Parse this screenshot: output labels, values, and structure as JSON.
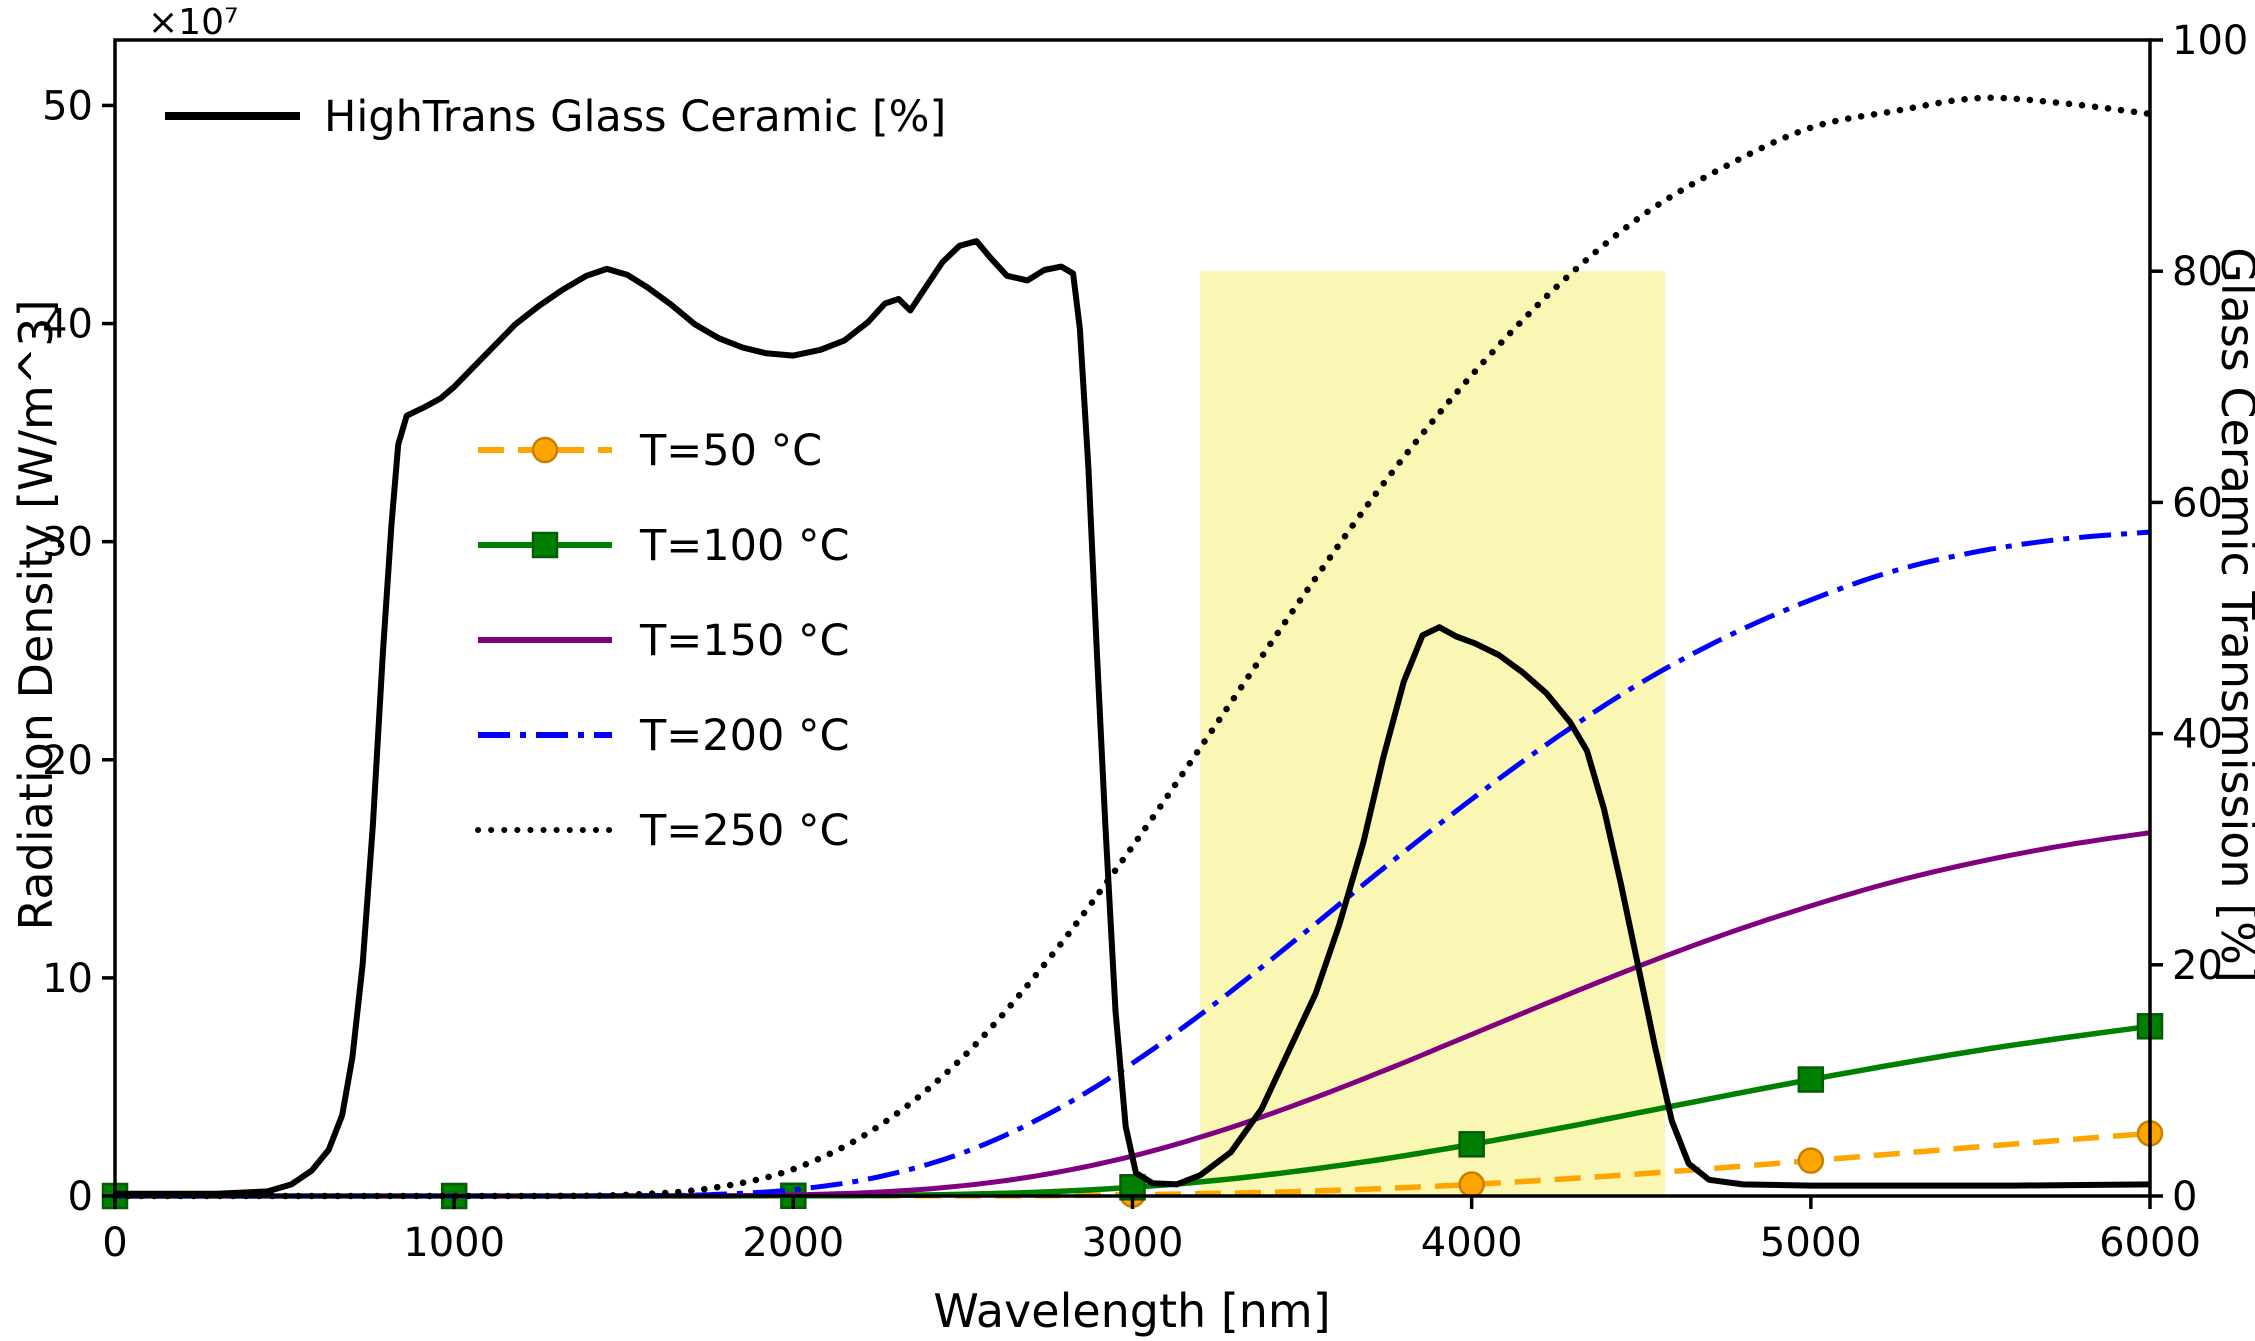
{
  "chart_data": {
    "type": "line",
    "title": "",
    "xlabel": "Wavelength [nm]",
    "ylabel_left": "Radiation Density [W/m^3]",
    "ylabel_right": "Glass Ceramic Transmission [%]",
    "offset_text": "×10⁷",
    "xlim": [
      0,
      6000
    ],
    "ylim_left": [
      0,
      53
    ],
    "ylim_right": [
      0,
      100
    ],
    "xticks": [
      0,
      1000,
      2000,
      3000,
      4000,
      5000,
      6000
    ],
    "yticks_left": [
      0,
      10,
      20,
      30,
      40,
      50
    ],
    "yticks_right": [
      0,
      20,
      40,
      60,
      80,
      100
    ],
    "grid": false,
    "legend_top_position": "upper-left",
    "legend_temps_position": "center-left",
    "highlight_region": {
      "x_start": 3200,
      "x_end": 4570,
      "y_start_pct": 0,
      "y_end_pct": 80,
      "color": "#f6ee6a",
      "opacity": 0.5
    },
    "series": [
      {
        "name": "T=50 °C",
        "legend": "temps",
        "axis": "left",
        "color": "#FFA500",
        "marker_edge": "#c87f00",
        "linestyle": "dashed",
        "linewidth": 5.5,
        "marker": "circle",
        "smooth": true,
        "points": [
          [
            0,
            0
          ],
          [
            1000,
            0
          ],
          [
            1500,
            0
          ],
          [
            2000,
            0.01
          ],
          [
            2250,
            0.01
          ],
          [
            2500,
            0.01
          ],
          [
            2750,
            0.02
          ],
          [
            3000,
            0.06
          ],
          [
            3250,
            0.12
          ],
          [
            3500,
            0.21
          ],
          [
            3750,
            0.35
          ],
          [
            4000,
            0.53
          ],
          [
            4250,
            0.76
          ],
          [
            4500,
            1.02
          ],
          [
            4750,
            1.31
          ],
          [
            5000,
            1.62
          ],
          [
            5250,
            1.94
          ],
          [
            5500,
            2.26
          ],
          [
            5750,
            2.57
          ],
          [
            6000,
            2.87
          ]
        ]
      },
      {
        "name": "T=100 °C",
        "legend": "temps",
        "axis": "left",
        "color": "#008000",
        "marker_edge": "#045c04",
        "linestyle": "solid",
        "linewidth": 5.5,
        "marker": "square",
        "smooth": true,
        "points": [
          [
            0,
            0
          ],
          [
            1000,
            0
          ],
          [
            1500,
            0
          ],
          [
            1750,
            0
          ],
          [
            2000,
            0.01
          ],
          [
            2250,
            0.02
          ],
          [
            2500,
            0.08
          ],
          [
            2750,
            0.19
          ],
          [
            3000,
            0.4
          ],
          [
            3250,
            0.72
          ],
          [
            3500,
            1.17
          ],
          [
            3750,
            1.72
          ],
          [
            4000,
            2.37
          ],
          [
            4250,
            3.08
          ],
          [
            4500,
            3.84
          ],
          [
            4750,
            4.6
          ],
          [
            5000,
            5.34
          ],
          [
            5250,
            6.04
          ],
          [
            5500,
            6.69
          ],
          [
            5750,
            7.26
          ],
          [
            6000,
            7.78
          ]
        ]
      },
      {
        "name": "T=150 °C",
        "legend": "temps",
        "axis": "left",
        "color": "#800080",
        "linestyle": "solid",
        "linewidth": 5,
        "marker": null,
        "smooth": true,
        "points": [
          [
            0,
            0
          ],
          [
            1250,
            0
          ],
          [
            1500,
            0.01
          ],
          [
            1750,
            0.01
          ],
          [
            2000,
            0.05
          ],
          [
            2250,
            0.18
          ],
          [
            2500,
            0.47
          ],
          [
            2750,
            1.01
          ],
          [
            3000,
            1.83
          ],
          [
            3250,
            2.94
          ],
          [
            3500,
            4.29
          ],
          [
            3750,
            5.8
          ],
          [
            4000,
            7.41
          ],
          [
            4250,
            9.02
          ],
          [
            4500,
            10.58
          ],
          [
            4750,
            12.02
          ],
          [
            5000,
            13.3
          ],
          [
            5250,
            14.43
          ],
          [
            5500,
            15.34
          ],
          [
            5750,
            16.08
          ],
          [
            6000,
            16.66
          ]
        ]
      },
      {
        "name": "T=200 °C",
        "legend": "temps",
        "axis": "left",
        "color": "#0000FF",
        "linestyle": "dashdot",
        "linewidth": 5,
        "marker": null,
        "smooth": true,
        "points": [
          [
            0,
            0
          ],
          [
            1000,
            0
          ],
          [
            1250,
            0
          ],
          [
            1500,
            0.01
          ],
          [
            1750,
            0.06
          ],
          [
            2000,
            0.29
          ],
          [
            2250,
            0.87
          ],
          [
            2500,
            1.98
          ],
          [
            2750,
            3.74
          ],
          [
            3000,
            6.09
          ],
          [
            3250,
            8.9
          ],
          [
            3500,
            11.98
          ],
          [
            3750,
            15.15
          ],
          [
            4000,
            18.19
          ],
          [
            4250,
            21.02
          ],
          [
            4500,
            23.54
          ],
          [
            4750,
            25.63
          ],
          [
            5000,
            27.33
          ],
          [
            5250,
            28.68
          ],
          [
            5500,
            29.57
          ],
          [
            5750,
            30.13
          ],
          [
            6000,
            30.44
          ]
        ]
      },
      {
        "name": "T=250 °C",
        "legend": "temps",
        "axis": "left",
        "color": "#000000",
        "linestyle": "dotted",
        "linewidth": 6.5,
        "marker": null,
        "smooth": true,
        "points": [
          [
            0,
            0
          ],
          [
            750,
            0
          ],
          [
            1000,
            0
          ],
          [
            1250,
            0
          ],
          [
            1500,
            0.05
          ],
          [
            1750,
            0.34
          ],
          [
            2000,
            1.23
          ],
          [
            2250,
            3.18
          ],
          [
            2500,
            6.36
          ],
          [
            2750,
            10.8
          ],
          [
            3000,
            16.03
          ],
          [
            3250,
            21.7
          ],
          [
            3500,
            27.44
          ],
          [
            3750,
            32.87
          ],
          [
            4000,
            37.63
          ],
          [
            4250,
            41.68
          ],
          [
            4500,
            44.92
          ],
          [
            4750,
            47.22
          ],
          [
            5000,
            48.98
          ],
          [
            5250,
            49.75
          ],
          [
            5500,
            50.34
          ],
          [
            5750,
            50.09
          ],
          [
            6000,
            49.61
          ]
        ]
      },
      {
        "name": "HighTrans Glass Ceramic [%]",
        "legend": "top",
        "axis": "right",
        "color": "#000000",
        "linestyle": "solid",
        "linewidth": 6,
        "marker": null,
        "smooth": false,
        "points": [
          [
            0,
            0.2
          ],
          [
            300,
            0.2
          ],
          [
            450,
            0.4
          ],
          [
            520,
            1
          ],
          [
            580,
            2.2
          ],
          [
            630,
            4
          ],
          [
            670,
            7
          ],
          [
            700,
            12
          ],
          [
            730,
            20
          ],
          [
            760,
            32
          ],
          [
            790,
            47
          ],
          [
            815,
            58
          ],
          [
            835,
            65
          ],
          [
            860,
            67.5
          ],
          [
            910,
            68.2
          ],
          [
            960,
            69
          ],
          [
            1000,
            70
          ],
          [
            1060,
            71.8
          ],
          [
            1120,
            73.6
          ],
          [
            1180,
            75.4
          ],
          [
            1250,
            77
          ],
          [
            1320,
            78.4
          ],
          [
            1390,
            79.6
          ],
          [
            1450,
            80.2
          ],
          [
            1510,
            79.7
          ],
          [
            1570,
            78.6
          ],
          [
            1640,
            77.1
          ],
          [
            1710,
            75.4
          ],
          [
            1780,
            74.2
          ],
          [
            1850,
            73.4
          ],
          [
            1920,
            72.9
          ],
          [
            2000,
            72.7
          ],
          [
            2080,
            73.2
          ],
          [
            2150,
            74
          ],
          [
            2220,
            75.6
          ],
          [
            2270,
            77.2
          ],
          [
            2310,
            77.6
          ],
          [
            2345,
            76.6
          ],
          [
            2390,
            78.6
          ],
          [
            2440,
            80.8
          ],
          [
            2490,
            82.2
          ],
          [
            2540,
            82.6
          ],
          [
            2580,
            81.2
          ],
          [
            2630,
            79.6
          ],
          [
            2690,
            79.2
          ],
          [
            2740,
            80.1
          ],
          [
            2790,
            80.4
          ],
          [
            2825,
            79.8
          ],
          [
            2845,
            75
          ],
          [
            2870,
            63
          ],
          [
            2895,
            47
          ],
          [
            2920,
            32
          ],
          [
            2950,
            16
          ],
          [
            2980,
            6
          ],
          [
            3010,
            2
          ],
          [
            3060,
            1.1
          ],
          [
            3130,
            1
          ],
          [
            3200,
            1.8
          ],
          [
            3290,
            3.8
          ],
          [
            3380,
            7.5
          ],
          [
            3460,
            12.5
          ],
          [
            3540,
            17.5
          ],
          [
            3610,
            23.5
          ],
          [
            3680,
            30.5
          ],
          [
            3740,
            38
          ],
          [
            3800,
            44.5
          ],
          [
            3855,
            48.5
          ],
          [
            3905,
            49.2
          ],
          [
            3955,
            48.4
          ],
          [
            4010,
            47.8
          ],
          [
            4080,
            46.8
          ],
          [
            4150,
            45.3
          ],
          [
            4220,
            43.5
          ],
          [
            4290,
            41
          ],
          [
            4340,
            38.5
          ],
          [
            4390,
            33.5
          ],
          [
            4440,
            27
          ],
          [
            4490,
            20
          ],
          [
            4540,
            13
          ],
          [
            4590,
            6.5
          ],
          [
            4640,
            2.8
          ],
          [
            4700,
            1.4
          ],
          [
            4800,
            1
          ],
          [
            5000,
            0.9
          ],
          [
            5300,
            0.9
          ],
          [
            5600,
            0.9
          ],
          [
            6000,
            1
          ]
        ]
      }
    ]
  }
}
